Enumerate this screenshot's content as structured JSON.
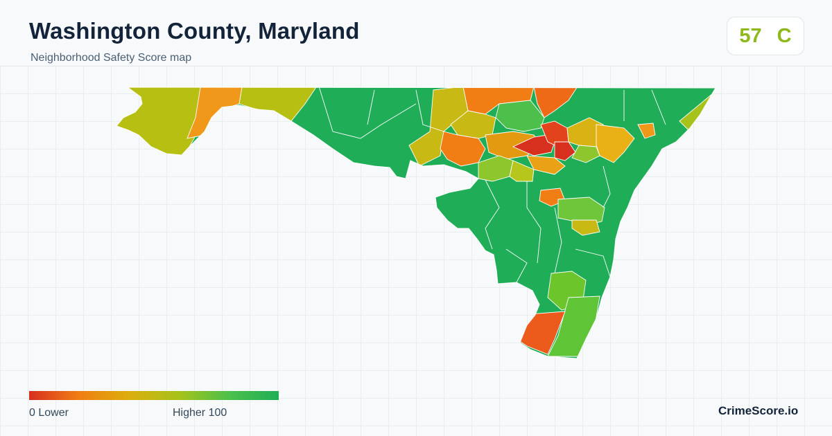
{
  "header": {
    "title": "Washington County, Maryland",
    "subtitle": "Neighborhood Safety Score map"
  },
  "score_badge": {
    "score": "57",
    "grade": "C",
    "color": "#8fb81c"
  },
  "legend": {
    "low_label": "0  Lower",
    "high_label": "Higher  100",
    "colors": [
      "#d7301f",
      "#f07e14",
      "#dcae0c",
      "#a7c21a",
      "#4cc04a",
      "#1fae57"
    ]
  },
  "brand": "CrimeScore.io",
  "map": {
    "outline_color": "#ffffff",
    "background": "#f7f9fa"
  }
}
